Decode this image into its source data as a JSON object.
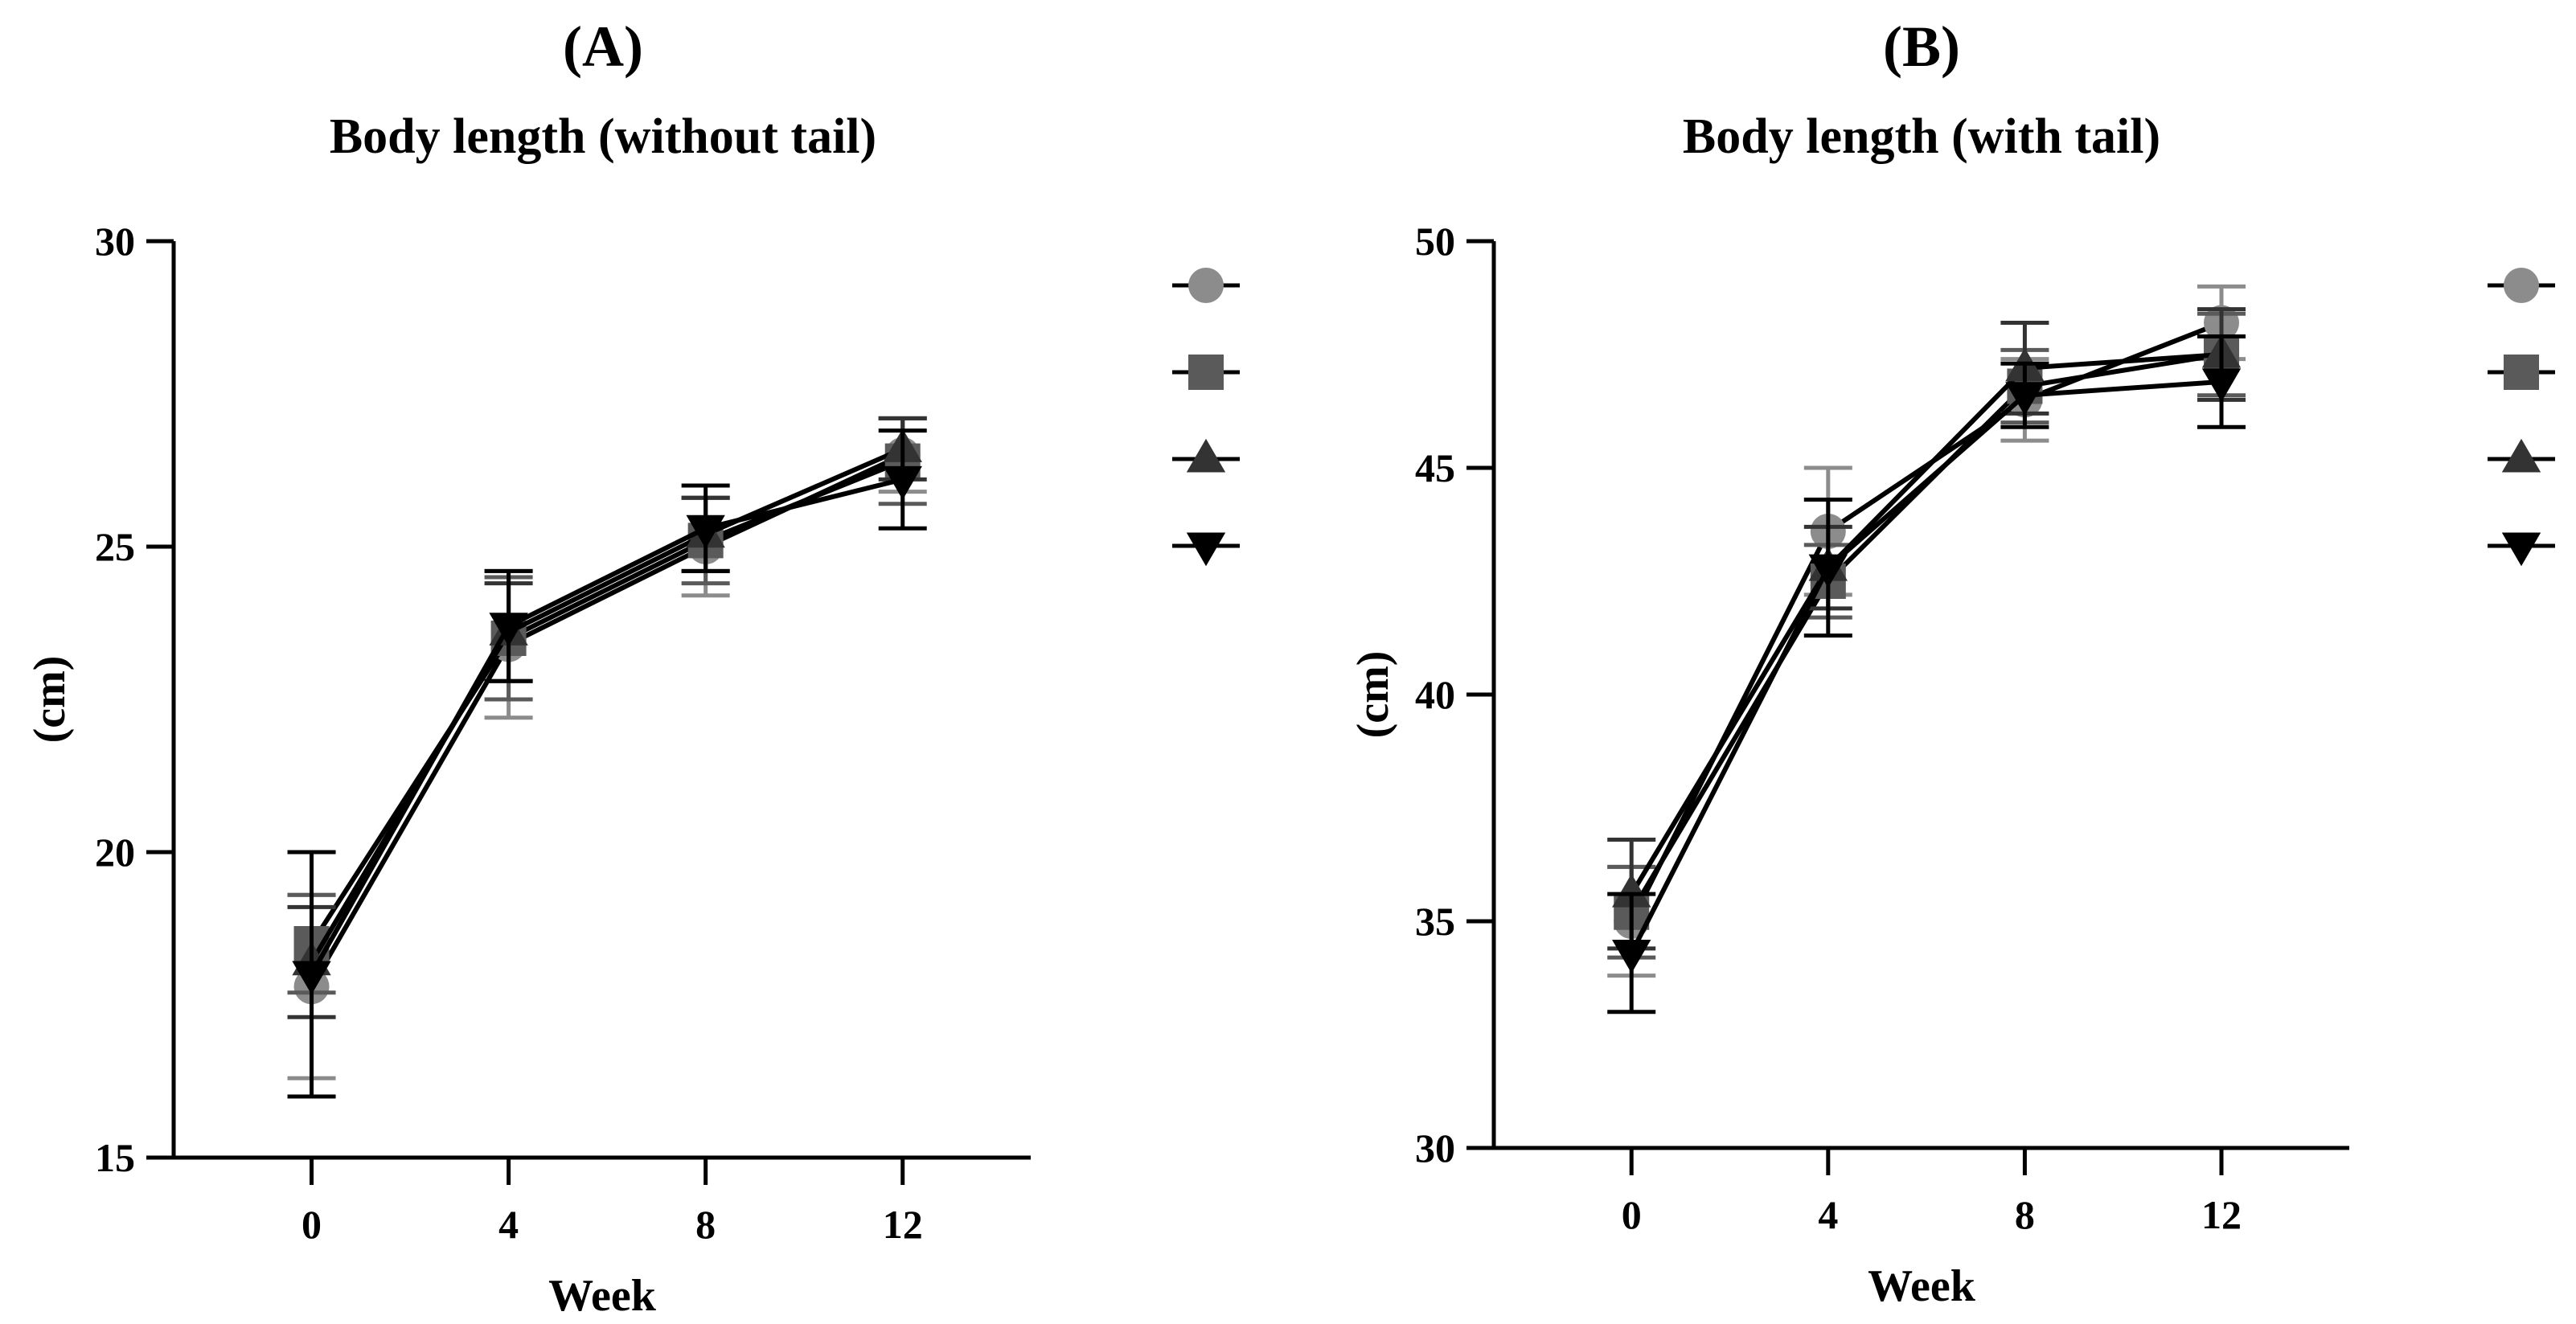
{
  "chart_data": [
    {
      "type": "line",
      "panel_label": "(A)",
      "title": "Body length (without tail)",
      "xlabel": "Week",
      "ylabel": "(cm)",
      "x": [
        0,
        4,
        8,
        12
      ],
      "x_ticks": [
        "0",
        "4",
        "8",
        "12"
      ],
      "xlim": [
        -2.8,
        14.6
      ],
      "ylim": [
        15,
        30
      ],
      "y_ticks": [
        15,
        20,
        25,
        30
      ],
      "grid": false,
      "legend_position": "right",
      "error_bars": true,
      "series": [
        {
          "marker": "circle",
          "color": "#8c8c8c",
          "values": [
            17.8,
            23.4,
            25.0,
            26.5
          ],
          "errors": [
            1.5,
            1.2,
            0.8,
            0.6
          ]
        },
        {
          "marker": "square",
          "color": "#5a5a5a",
          "values": [
            18.5,
            23.5,
            25.1,
            26.4
          ],
          "errors": [
            0.8,
            1.0,
            0.7,
            0.7
          ]
        },
        {
          "marker": "triangle-up",
          "color": "#333333",
          "values": [
            18.2,
            23.6,
            25.2,
            26.6
          ],
          "errors": [
            0.9,
            0.8,
            0.6,
            0.5
          ]
        },
        {
          "marker": "triangle-down",
          "color": "#000000",
          "values": [
            18.0,
            23.7,
            25.3,
            26.1
          ],
          "errors": [
            2.0,
            0.9,
            0.7,
            0.8
          ]
        }
      ]
    },
    {
      "type": "line",
      "panel_label": "(B)",
      "title": "Body length (with tail)",
      "xlabel": "Week",
      "ylabel": "(cm)",
      "x": [
        0,
        4,
        8,
        12
      ],
      "x_ticks": [
        "0",
        "4",
        "8",
        "12"
      ],
      "xlim": [
        -2.8,
        14.6
      ],
      "ylim": [
        30,
        50
      ],
      "y_ticks": [
        30,
        35,
        40,
        45,
        50
      ],
      "grid": false,
      "legend_position": "right",
      "error_bars": true,
      "series": [
        {
          "marker": "circle",
          "color": "#8c8c8c",
          "values": [
            35.0,
            43.6,
            46.5,
            48.2
          ],
          "errors": [
            1.2,
            1.4,
            0.9,
            0.8
          ]
        },
        {
          "marker": "square",
          "color": "#5a5a5a",
          "values": [
            35.2,
            42.5,
            46.8,
            47.5
          ],
          "errors": [
            1.0,
            0.8,
            0.8,
            0.9
          ]
        },
        {
          "marker": "triangle-up",
          "color": "#333333",
          "values": [
            35.6,
            42.8,
            47.2,
            47.5
          ],
          "errors": [
            1.2,
            0.9,
            1.0,
            1.0
          ]
        },
        {
          "marker": "triangle-down",
          "color": "#000000",
          "values": [
            34.3,
            42.8,
            46.6,
            46.9
          ],
          "errors": [
            1.3,
            1.5,
            0.7,
            1.0
          ]
        }
      ]
    }
  ]
}
